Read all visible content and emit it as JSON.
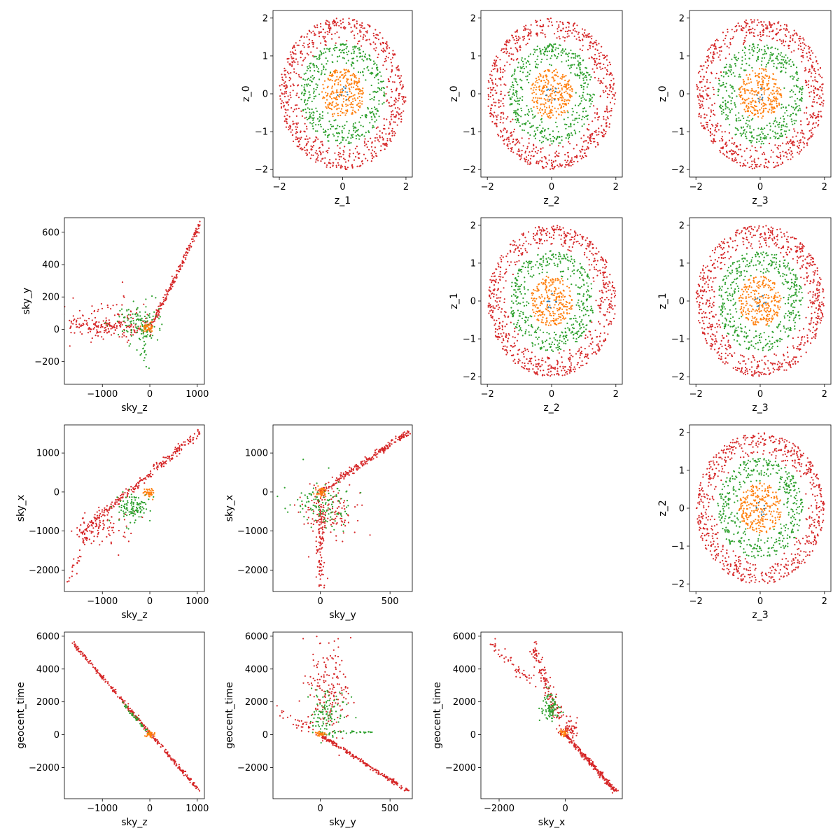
{
  "chart_data": {
    "type": "scatter",
    "description_layout": "4x4 corner pair-plot grid",
    "series_colors": {
      "outer": "#d62728",
      "middle": "#2ca02c",
      "inner": "#ff7f0e",
      "core": "#1f77b4"
    },
    "z_axis_ticks": [
      -2,
      -1,
      0,
      1,
      2
    ],
    "z_axis_range": [
      -2.15,
      2.15
    ],
    "z_shell_radii": {
      "inner": 0.67,
      "middle": 1.33,
      "outer": 2.0
    },
    "panels": [
      {
        "id": "z0-vs-z1",
        "kind": "z",
        "xlabel": "z_1",
        "ylabel": "z_0",
        "xlim": [
          -2.2,
          2.2
        ],
        "ylim": [
          -2.2,
          2.2
        ],
        "xticks": [
          -2,
          0,
          2
        ],
        "yticks": [
          -2,
          -1,
          0,
          1,
          2
        ]
      },
      {
        "id": "z0-vs-z2",
        "kind": "z",
        "xlabel": "z_2",
        "ylabel": "z_0",
        "xlim": [
          -2.2,
          2.2
        ],
        "ylim": [
          -2.2,
          2.2
        ],
        "xticks": [
          -2,
          0,
          2
        ],
        "yticks": [
          -2,
          -1,
          0,
          1,
          2
        ]
      },
      {
        "id": "z0-vs-z3",
        "kind": "z",
        "xlabel": "z_3",
        "ylabel": "z_0",
        "xlim": [
          -2.2,
          2.2
        ],
        "ylim": [
          -2.2,
          2.2
        ],
        "xticks": [
          -2,
          0,
          2
        ],
        "yticks": [
          -2,
          -1,
          0,
          1,
          2
        ]
      },
      {
        "id": "z1-vs-z2",
        "kind": "z",
        "xlabel": "z_2",
        "ylabel": "z_1",
        "xlim": [
          -2.2,
          2.2
        ],
        "ylim": [
          -2.2,
          2.2
        ],
        "xticks": [
          -2,
          0,
          2
        ],
        "yticks": [
          -2,
          -1,
          0,
          1,
          2
        ]
      },
      {
        "id": "z1-vs-z3",
        "kind": "z",
        "xlabel": "z_3",
        "ylabel": "z_1",
        "xlim": [
          -2.2,
          2.2
        ],
        "ylim": [
          -2.2,
          2.2
        ],
        "xticks": [
          -2,
          0,
          2
        ],
        "yticks": [
          -2,
          -1,
          0,
          1,
          2
        ]
      },
      {
        "id": "z2-vs-z3",
        "kind": "z",
        "xlabel": "z_3",
        "ylabel": "z_2",
        "xlim": [
          -2.2,
          2.2
        ],
        "ylim": [
          -2.2,
          2.2
        ],
        "xticks": [
          -2,
          0,
          2
        ],
        "yticks": [
          -2,
          -1,
          0,
          1,
          2
        ]
      },
      {
        "id": "skyy-vs-skyz",
        "kind": "sky",
        "xlabel": "sky_z",
        "ylabel": "sky_y",
        "xlim": [
          -1800,
          1150
        ],
        "ylim": [
          -340,
          690
        ],
        "xticks": [
          -1000,
          0,
          1000
        ],
        "yticks": [
          -200,
          0,
          200,
          400,
          600
        ]
      },
      {
        "id": "skyx-vs-skyz",
        "kind": "sky",
        "xlabel": "sky_z",
        "ylabel": "sky_x",
        "xlim": [
          -1800,
          1150
        ],
        "ylim": [
          -2550,
          1720
        ],
        "xticks": [
          -1000,
          0,
          1000
        ],
        "yticks": [
          -2000,
          -1000,
          0,
          1000
        ]
      },
      {
        "id": "skyx-vs-skyy",
        "kind": "sky",
        "xlabel": "sky_y",
        "ylabel": "sky_x",
        "xlim": [
          -340,
          660
        ],
        "ylim": [
          -2550,
          1720
        ],
        "xticks": [
          0,
          500
        ],
        "yticks": [
          -2000,
          -1000,
          0,
          1000
        ]
      },
      {
        "id": "geocent-vs-skyz",
        "kind": "sky",
        "xlabel": "sky_z",
        "ylabel": "geocent_time",
        "xlim": [
          -1800,
          1150
        ],
        "ylim": [
          -3900,
          6250
        ],
        "xticks": [
          -1000,
          0,
          1000
        ],
        "yticks": [
          -2000,
          0,
          2000,
          4000,
          6000
        ]
      },
      {
        "id": "geocent-vs-skyy",
        "kind": "sky",
        "xlabel": "sky_y",
        "ylabel": "geocent_time",
        "xlim": [
          -340,
          660
        ],
        "ylim": [
          -3900,
          6250
        ],
        "xticks": [
          0,
          500
        ],
        "yticks": [
          -2000,
          0,
          2000,
          4000,
          6000
        ]
      },
      {
        "id": "geocent-vs-skyx",
        "kind": "sky",
        "xlabel": "sky_x",
        "ylabel": "geocent_time",
        "xlim": [
          -2550,
          1720
        ],
        "ylim": [
          -3900,
          6250
        ],
        "xticks": [
          -2000,
          0
        ],
        "yticks": [
          -2000,
          0,
          2000,
          4000,
          6000
        ]
      }
    ],
    "sky_features": {
      "skyy-vs-skyz": [
        {
          "shape": "line",
          "series": "outer",
          "from": [
            0,
            0
          ],
          "to": [
            1050,
            640
          ],
          "n": 180,
          "spread": [
            15,
            12
          ]
        },
        {
          "shape": "line",
          "series": "outer",
          "from": [
            0,
            0
          ],
          "to": [
            -1700,
            20
          ],
          "n": 160,
          "spread": [
            60,
            35
          ]
        },
        {
          "shape": "cloud",
          "series": "outer",
          "center": [
            -900,
            60
          ],
          "spread": [
            450,
            70
          ],
          "n": 70
        },
        {
          "shape": "cloud",
          "series": "middle",
          "center": [
            -250,
            40
          ],
          "spread": [
            220,
            60
          ],
          "n": 120
        },
        {
          "shape": "line",
          "series": "middle",
          "from": [
            -100,
            0
          ],
          "to": [
            -100,
            -200
          ],
          "n": 25,
          "spread": [
            50,
            40
          ]
        },
        {
          "shape": "cloud",
          "series": "inner",
          "center": [
            -40,
            10
          ],
          "spread": [
            60,
            15
          ],
          "n": 40
        }
      ],
      "skyx-vs-skyz": [
        {
          "shape": "line",
          "series": "outer",
          "from": [
            -1500,
            -1100
          ],
          "to": [
            1050,
            1550
          ],
          "n": 260,
          "spread": [
            25,
            60
          ]
        },
        {
          "shape": "cloud",
          "series": "outer",
          "center": [
            -1000,
            -950
          ],
          "spread": [
            300,
            250
          ],
          "n": 90
        },
        {
          "shape": "line",
          "series": "outer",
          "from": [
            -1300,
            -1000
          ],
          "to": [
            -1700,
            -2350
          ],
          "n": 30,
          "spread": [
            40,
            50
          ]
        },
        {
          "shape": "cloud",
          "series": "middle",
          "center": [
            -350,
            -400
          ],
          "spread": [
            180,
            180
          ],
          "n": 110
        },
        {
          "shape": "cloud",
          "series": "inner",
          "center": [
            -40,
            -20
          ],
          "spread": [
            60,
            60
          ],
          "n": 40
        }
      ],
      "skyx-vs-skyy": [
        {
          "shape": "line",
          "series": "outer",
          "from": [
            0,
            0
          ],
          "to": [
            630,
            1530
          ],
          "n": 230,
          "spread": [
            15,
            40
          ]
        },
        {
          "shape": "line",
          "series": "outer",
          "from": [
            0,
            -100
          ],
          "to": [
            0,
            -2350
          ],
          "n": 110,
          "spread": [
            15,
            120
          ]
        },
        {
          "shape": "cloud",
          "series": "outer",
          "center": [
            80,
            -500
          ],
          "spread": [
            110,
            350
          ],
          "n": 120
        },
        {
          "shape": "cloud",
          "series": "middle",
          "center": [
            30,
            -300
          ],
          "spread": [
            110,
            300
          ],
          "n": 120
        },
        {
          "shape": "cloud",
          "series": "inner",
          "center": [
            5,
            0
          ],
          "spread": [
            20,
            60
          ],
          "n": 40
        }
      ],
      "geocent-vs-skyz": [
        {
          "shape": "line",
          "series": "outer",
          "from": [
            -1650,
            5700
          ],
          "to": [
            1050,
            -3450
          ],
          "n": 320,
          "spread": [
            15,
            60
          ]
        },
        {
          "shape": "line",
          "series": "middle",
          "from": [
            -600,
            2000
          ],
          "to": [
            0,
            0
          ],
          "n": 40,
          "spread": [
            15,
            50
          ]
        },
        {
          "shape": "cloud",
          "series": "inner",
          "center": [
            0,
            0
          ],
          "spread": [
            40,
            100
          ],
          "n": 30
        }
      ],
      "geocent-vs-skyy": [
        {
          "shape": "line",
          "series": "outer",
          "from": [
            0,
            0
          ],
          "to": [
            630,
            -3450
          ],
          "n": 220,
          "spread": [
            8,
            40
          ]
        },
        {
          "shape": "cloud",
          "series": "outer",
          "center": [
            60,
            2700
          ],
          "spread": [
            80,
            1500
          ],
          "n": 170
        },
        {
          "shape": "cloud",
          "series": "middle",
          "center": [
            50,
            1200
          ],
          "spread": [
            60,
            700
          ],
          "n": 110
        },
        {
          "shape": "line",
          "series": "outer",
          "from": [
            -20,
            50
          ],
          "to": [
            -300,
            1500
          ],
          "n": 30,
          "spread": [
            30,
            150
          ]
        },
        {
          "shape": "line",
          "series": "middle",
          "from": [
            0,
            150
          ],
          "to": [
            400,
            150
          ],
          "n": 30,
          "spread": [
            30,
            40
          ]
        },
        {
          "shape": "cloud",
          "series": "inner",
          "center": [
            0,
            60
          ],
          "spread": [
            15,
            60
          ],
          "n": 30
        }
      ],
      "geocent-vs-skyx": [
        {
          "shape": "line",
          "series": "outer",
          "from": [
            0,
            0
          ],
          "to": [
            1530,
            -3450
          ],
          "n": 220,
          "spread": [
            40,
            60
          ]
        },
        {
          "shape": "line",
          "series": "outer",
          "from": [
            -1000,
            5500
          ],
          "to": [
            -200,
            1000
          ],
          "n": 120,
          "spread": [
            80,
            180
          ]
        },
        {
          "shape": "line",
          "series": "outer",
          "from": [
            -2300,
            5700
          ],
          "to": [
            -900,
            3000
          ],
          "n": 50,
          "spread": [
            60,
            200
          ]
        },
        {
          "shape": "cloud",
          "series": "middle",
          "center": [
            -450,
            1700
          ],
          "spread": [
            150,
            400
          ],
          "n": 90
        },
        {
          "shape": "cloud",
          "series": "outer",
          "center": [
            100,
            300
          ],
          "spread": [
            150,
            300
          ],
          "n": 60
        },
        {
          "shape": "cloud",
          "series": "inner",
          "center": [
            -50,
            100
          ],
          "spread": [
            60,
            100
          ],
          "n": 30
        }
      ]
    }
  }
}
